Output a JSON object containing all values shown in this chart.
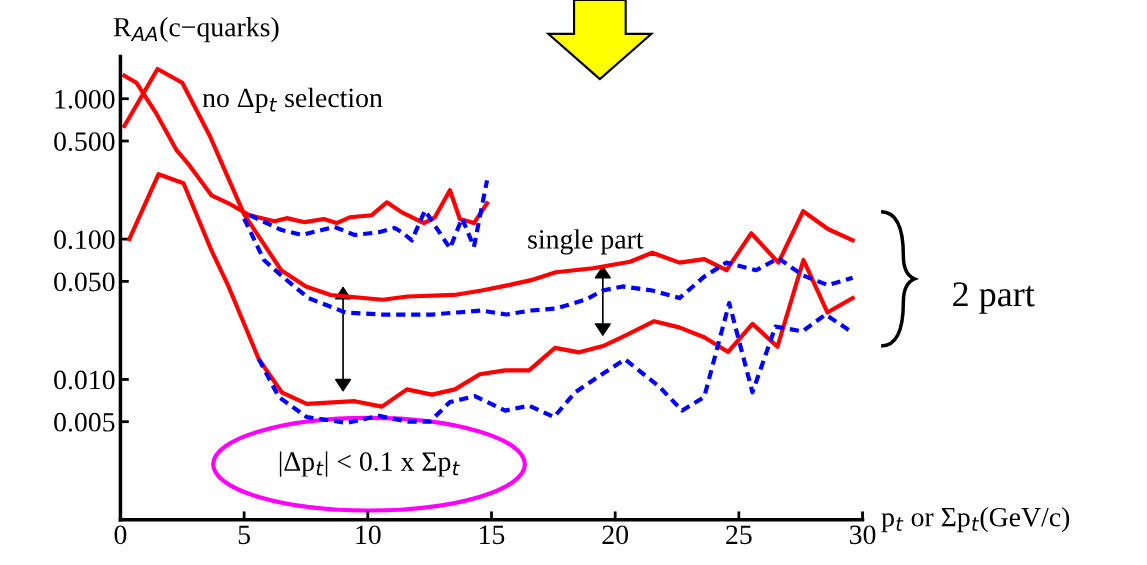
{
  "chart_data": {
    "type": "line",
    "ylabel": "R$_{AA}$(c−quarks)",
    "xlabel": "p$_{t}$ or Σp$_{t}$(GeV/c)",
    "log": "y",
    "xlim": [
      0,
      30
    ],
    "xticks": [
      0,
      5,
      10,
      15,
      20,
      25,
      30
    ],
    "ylim": [
      0.001,
      2
    ],
    "yticks": [
      {
        "value": 0.005,
        "label": "0.005"
      },
      {
        "value": 0.01,
        "label": "0.010"
      },
      {
        "value": 0.05,
        "label": "0.050"
      },
      {
        "value": 0.1,
        "label": "0.100"
      },
      {
        "value": 0.5,
        "label": "0.500"
      },
      {
        "value": 1,
        "label": "1.000"
      }
    ],
    "grid": false,
    "annotations": [
      "no Δp$_{t}$ selection",
      "single part",
      "2 part",
      "|Δp$_{t}$| < 0.1 x Σp$_{t}$"
    ],
    "series": [
      {
        "color": "#ff0000",
        "line_style": "solid",
        "x": [
          0.16,
          0.65,
          1.46,
          2.27,
          2.79,
          3.68,
          4.37,
          5.22,
          6.23,
          6.72,
          7.45,
          8.22,
          8.74,
          9.27,
          10.16,
          10.77,
          11.38,
          12.27,
          12.71,
          13.32,
          13.72,
          14.29,
          14.82
        ],
        "values": [
          1.46,
          1.3,
          0.78,
          0.43,
          0.335,
          0.205,
          0.18,
          0.148,
          0.134,
          0.141,
          0.132,
          0.139,
          0.13,
          0.143,
          0.148,
          0.183,
          0.155,
          0.13,
          0.143,
          0.223,
          0.139,
          0.13,
          0.18
        ]
      },
      {
        "color": "#0000ff",
        "line_style": "dashed",
        "x": [
          5.22,
          6.52,
          7.33,
          8.14,
          8.66,
          9.47,
          10.45,
          11.09,
          11.38,
          11.78,
          12.31,
          13.32,
          13.81,
          14.29,
          14.82
        ],
        "values": [
          0.148,
          0.116,
          0.107,
          0.116,
          0.122,
          0.107,
          0.112,
          0.12,
          0.112,
          0.098,
          0.16,
          0.086,
          0.141,
          0.088,
          0.262
        ]
      },
      {
        "color": "#ff0000",
        "line_style": "solid",
        "x": [
          0.16,
          1.5,
          2.5,
          3.6,
          5.0,
          6.5,
          7.5,
          8.5,
          10.6,
          11.6,
          13.5,
          14.6,
          15.7,
          16.6,
          17.6,
          19.1,
          20.6,
          21.5,
          22.6,
          23.6,
          24.5,
          25.5,
          26.6,
          27.6,
          28.6,
          29.6
        ],
        "values": [
          0.64,
          1.63,
          1.3,
          0.55,
          0.15,
          0.06,
          0.046,
          0.04,
          0.037,
          0.039,
          0.04,
          0.043,
          0.047,
          0.051,
          0.058,
          0.062,
          0.069,
          0.08,
          0.068,
          0.072,
          0.06,
          0.11,
          0.068,
          0.158,
          0.118,
          0.098
        ]
      },
      {
        "color": "#0000ff",
        "line_style": "dashed",
        "x": [
          5.0,
          5.8,
          6.5,
          7.6,
          9.1,
          10.6,
          11.6,
          12.6,
          13.6,
          14.6,
          15.6,
          16.6,
          17.6,
          18.8,
          19.5,
          20.3,
          21.5,
          22.6,
          23.6,
          24.5,
          25.7,
          26.6,
          27.6,
          28.6,
          29.6
        ],
        "values": [
          0.14,
          0.071,
          0.055,
          0.038,
          0.03,
          0.029,
          0.029,
          0.029,
          0.03,
          0.031,
          0.029,
          0.031,
          0.032,
          0.037,
          0.043,
          0.046,
          0.043,
          0.038,
          0.054,
          0.068,
          0.06,
          0.073,
          0.055,
          0.047,
          0.053
        ]
      },
      {
        "color": "#ff0000",
        "line_style": "solid",
        "x": [
          0.36,
          1.54,
          2.55,
          3.68,
          4.37,
          5.59,
          6.52,
          7.53,
          9.47,
          10.57,
          11.58,
          12.59,
          13.52,
          14.53,
          15.55,
          16.52,
          17.57,
          18.54,
          19.55,
          20.28,
          21.58,
          22.59,
          23.6,
          24.57,
          25.55,
          26.56,
          27.61,
          28.58,
          29.6
        ],
        "values": [
          0.1,
          0.29,
          0.25,
          0.083,
          0.046,
          0.014,
          0.0081,
          0.0067,
          0.007,
          0.0064,
          0.0085,
          0.0078,
          0.0085,
          0.0109,
          0.0116,
          0.0116,
          0.0168,
          0.0156,
          0.0174,
          0.02,
          0.026,
          0.0235,
          0.02,
          0.0157,
          0.0249,
          0.0171,
          0.071,
          0.03,
          0.038
        ]
      },
      {
        "color": "#0000ff",
        "line_style": "dashed",
        "x": [
          5.59,
          6.4,
          7.53,
          9.15,
          10.45,
          11.66,
          12.51,
          13.32,
          14.33,
          15.55,
          16.52,
          17.53,
          18.38,
          19.47,
          20.4,
          21.78,
          22.71,
          23.6,
          24.61,
          25.55,
          26.48,
          27.57,
          28.5,
          29.6
        ],
        "values": [
          0.014,
          0.0075,
          0.0054,
          0.0049,
          0.0055,
          0.005,
          0.005,
          0.0069,
          0.0076,
          0.006,
          0.0065,
          0.0054,
          0.0081,
          0.0109,
          0.0139,
          0.0089,
          0.006,
          0.0075,
          0.035,
          0.0081,
          0.0238,
          0.022,
          0.029,
          0.0216
        ]
      }
    ]
  }
}
